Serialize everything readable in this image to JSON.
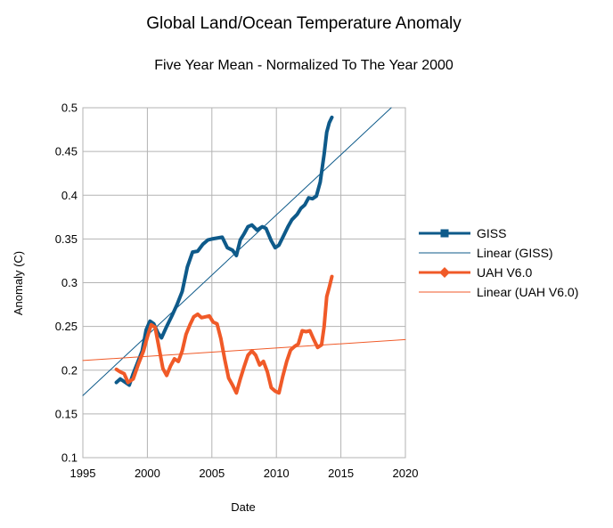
{
  "chart_data": {
    "type": "line",
    "title": "Global Land/Ocean Temperature Anomaly",
    "subtitle": "Five Year Mean - Normalized To The Year 2000",
    "xlabel": "Date",
    "ylabel": "Anomaly (C)",
    "xlim": [
      1995,
      2020
    ],
    "ylim": [
      0.1,
      0.5
    ],
    "xticks": [
      "1995",
      "2000",
      "2005",
      "2010",
      "2015",
      "2020"
    ],
    "yticks": [
      "0.1",
      "0.15",
      "0.2",
      "0.25",
      "0.3",
      "0.35",
      "0.4",
      "0.45",
      "0.5"
    ],
    "grid": true,
    "legend_position": "right",
    "series": [
      {
        "name": "GISS",
        "color": "#0e5a8a",
        "marker": "square",
        "x": [
          1997.6,
          1997.9,
          1998.2,
          1998.6,
          1998.9,
          1999.2,
          1999.6,
          1999.9,
          2000.2,
          2000.5,
          2000.8,
          2001.1,
          2001.5,
          2001.9,
          2002.3,
          2002.7,
          2003.1,
          2003.5,
          2003.9,
          2004.3,
          2004.7,
          2005.0,
          2005.4,
          2005.8,
          2006.2,
          2006.6,
          2006.9,
          2007.2,
          2007.5,
          2007.8,
          2008.1,
          2008.5,
          2008.9,
          2009.2,
          2009.6,
          2009.9,
          2010.2,
          2010.6,
          2010.9,
          2011.2,
          2011.6,
          2011.9,
          2012.2,
          2012.5,
          2012.8,
          2013.1,
          2013.4,
          2013.7,
          2013.9,
          2014.1,
          2014.3
        ],
        "y": [
          0.186,
          0.19,
          0.187,
          0.183,
          0.196,
          0.207,
          0.222,
          0.246,
          0.256,
          0.253,
          0.243,
          0.237,
          0.25,
          0.262,
          0.275,
          0.29,
          0.318,
          0.335,
          0.336,
          0.344,
          0.349,
          0.35,
          0.351,
          0.352,
          0.34,
          0.337,
          0.331,
          0.349,
          0.356,
          0.364,
          0.366,
          0.36,
          0.364,
          0.362,
          0.348,
          0.34,
          0.343,
          0.355,
          0.364,
          0.372,
          0.378,
          0.385,
          0.389,
          0.397,
          0.396,
          0.399,
          0.415,
          0.447,
          0.472,
          0.483,
          0.489
        ]
      },
      {
        "name": "Linear (GISS)",
        "color": "#0e5a8a",
        "x": [
          1995,
          2018.9
        ],
        "y": [
          0.171,
          0.5
        ]
      },
      {
        "name": "UAH V6.0",
        "color": "#f05a28",
        "marker": "diamond",
        "x": [
          1997.6,
          1997.9,
          1998.2,
          1998.5,
          1998.9,
          1999.3,
          1999.7,
          2000.0,
          2000.3,
          2000.6,
          2000.9,
          2001.2,
          2001.5,
          2001.8,
          2002.1,
          2002.4,
          2002.7,
          2003.0,
          2003.3,
          2003.6,
          2003.9,
          2004.2,
          2004.5,
          2004.8,
          2005.1,
          2005.4,
          2005.7,
          2006.0,
          2006.3,
          2006.6,
          2006.9,
          2007.2,
          2007.5,
          2007.8,
          2008.1,
          2008.4,
          2008.7,
          2009.0,
          2009.3,
          2009.6,
          2009.9,
          2010.2,
          2010.5,
          2010.8,
          2011.1,
          2011.4,
          2011.7,
          2012.0,
          2012.3,
          2012.6,
          2012.9,
          2013.2,
          2013.5,
          2013.7,
          2013.9,
          2014.1,
          2014.3
        ],
        "y": [
          0.201,
          0.198,
          0.196,
          0.186,
          0.19,
          0.207,
          0.222,
          0.238,
          0.252,
          0.249,
          0.226,
          0.202,
          0.194,
          0.205,
          0.213,
          0.21,
          0.222,
          0.241,
          0.252,
          0.261,
          0.264,
          0.26,
          0.261,
          0.262,
          0.255,
          0.253,
          0.236,
          0.212,
          0.191,
          0.183,
          0.174,
          0.19,
          0.204,
          0.217,
          0.222,
          0.217,
          0.206,
          0.21,
          0.198,
          0.18,
          0.176,
          0.174,
          0.193,
          0.21,
          0.223,
          0.227,
          0.23,
          0.245,
          0.244,
          0.245,
          0.235,
          0.226,
          0.229,
          0.25,
          0.284,
          0.295,
          0.307
        ]
      },
      {
        "name": "Linear (UAH V6.0)",
        "color": "#f05a28",
        "x": [
          1995,
          2020
        ],
        "y": [
          0.211,
          0.235
        ]
      }
    ]
  }
}
